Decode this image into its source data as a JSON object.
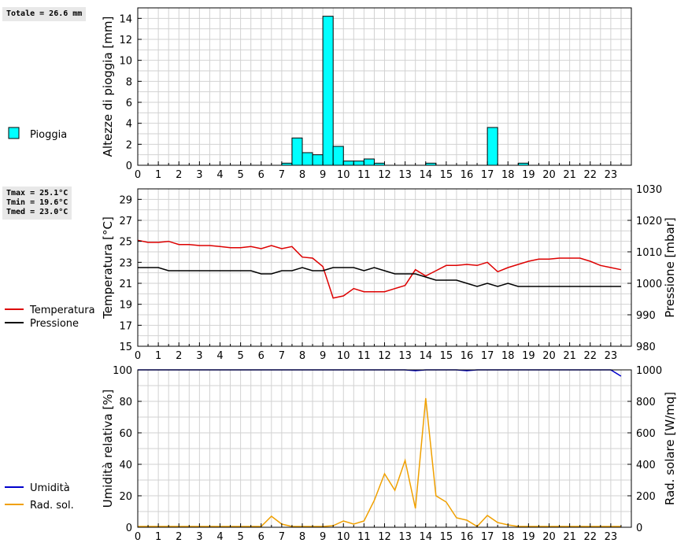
{
  "chart_data": [
    {
      "type": "bar",
      "name": "rain",
      "info": [
        "Totale = 26.6 mm"
      ],
      "ylabel": "Altezze di pioggia [mm]",
      "ylim": [
        0,
        15
      ],
      "yticks": [
        0,
        2,
        4,
        6,
        8,
        10,
        12,
        14
      ],
      "xlim": [
        0,
        24
      ],
      "xticks": [
        "0",
        "1",
        "2",
        "3",
        "4",
        "5",
        "6",
        "7",
        "8",
        "9",
        "10",
        "11",
        "12",
        "13",
        "14",
        "15",
        "16",
        "17",
        "18",
        "19",
        "20",
        "21",
        "22",
        "23"
      ],
      "bin_width": 0.5,
      "legend": [
        {
          "label": "Pioggia",
          "color": "#00ffff"
        }
      ],
      "bars": [
        {
          "x": 7.0,
          "value": 0.2
        },
        {
          "x": 7.5,
          "value": 2.6
        },
        {
          "x": 8.0,
          "value": 1.2
        },
        {
          "x": 8.5,
          "value": 1.0
        },
        {
          "x": 9.0,
          "value": 14.2
        },
        {
          "x": 9.5,
          "value": 1.8
        },
        {
          "x": 10.0,
          "value": 0.4
        },
        {
          "x": 10.5,
          "value": 0.4
        },
        {
          "x": 11.0,
          "value": 0.6
        },
        {
          "x": 11.5,
          "value": 0.2
        },
        {
          "x": 14.0,
          "value": 0.2
        },
        {
          "x": 17.0,
          "value": 3.6
        },
        {
          "x": 18.5,
          "value": 0.2
        }
      ]
    },
    {
      "type": "line",
      "name": "temp-press",
      "info": [
        "Tmax = 25.1°C",
        "Tmin = 19.6°C",
        "Tmed = 23.0°C"
      ],
      "ylabel": "Temperatura [°C]",
      "ylim": [
        15,
        30
      ],
      "yticks": [
        15,
        17,
        19,
        21,
        23,
        25,
        27,
        29
      ],
      "y2label": "Pressione [mbar]",
      "y2lim": [
        980,
        1030
      ],
      "y2ticks": [
        980,
        990,
        1000,
        1010,
        1020,
        1030
      ],
      "xlim": [
        0,
        24
      ],
      "xticks": [
        "0",
        "1",
        "2",
        "3",
        "4",
        "5",
        "6",
        "7",
        "8",
        "9",
        "10",
        "11",
        "12",
        "13",
        "14",
        "15",
        "16",
        "17",
        "18",
        "19",
        "20",
        "21",
        "22",
        "23"
      ],
      "legend": [
        {
          "label": "Temperatura",
          "color": "#dd0000"
        },
        {
          "label": "Pressione",
          "color": "#000000"
        }
      ],
      "series": [
        {
          "name": "Temperatura",
          "axis": "left",
          "color": "#dd0000",
          "x": [
            0,
            0.5,
            1,
            1.5,
            2,
            2.5,
            3,
            3.5,
            4,
            4.5,
            5,
            5.5,
            6,
            6.5,
            7,
            7.5,
            8,
            8.5,
            9,
            9.5,
            10,
            10.5,
            11,
            11.5,
            12,
            12.5,
            13,
            13.5,
            14,
            14.5,
            15,
            15.5,
            16,
            16.5,
            17,
            17.5,
            18,
            18.5,
            19,
            19.5,
            20,
            20.5,
            21,
            21.5,
            22,
            22.5,
            23,
            23.5
          ],
          "values": [
            25.1,
            24.9,
            24.9,
            25.0,
            24.7,
            24.7,
            24.6,
            24.6,
            24.5,
            24.4,
            24.4,
            24.5,
            24.3,
            24.6,
            24.3,
            24.5,
            23.5,
            23.4,
            22.6,
            19.6,
            19.8,
            20.5,
            20.2,
            20.2,
            20.2,
            20.5,
            20.8,
            22.3,
            21.7,
            22.2,
            22.7,
            22.7,
            22.8,
            22.7,
            23.0,
            22.1,
            22.5,
            22.8,
            23.1,
            23.3,
            23.3,
            23.4,
            23.4,
            23.4,
            23.1,
            22.7,
            22.5,
            22.3
          ]
        },
        {
          "name": "Pressione",
          "axis": "right",
          "color": "#000000",
          "x": [
            0,
            0.5,
            1,
            1.5,
            2,
            2.5,
            3,
            3.5,
            4,
            4.5,
            5,
            5.5,
            6,
            6.5,
            7,
            7.5,
            8,
            8.5,
            9,
            9.5,
            10,
            10.5,
            11,
            11.5,
            12,
            12.5,
            13,
            13.5,
            14,
            14.5,
            15,
            15.5,
            16,
            16.5,
            17,
            17.5,
            18,
            18.5,
            19,
            19.5,
            20,
            20.5,
            21,
            21.5,
            22,
            22.5,
            23,
            23.5
          ],
          "values": [
            1005,
            1005,
            1005,
            1004,
            1004,
            1004,
            1004,
            1004,
            1004,
            1004,
            1004,
            1004,
            1003,
            1003,
            1004,
            1004,
            1005,
            1004,
            1004,
            1005,
            1005,
            1005,
            1004,
            1005,
            1004,
            1003,
            1003,
            1003,
            1002,
            1001,
            1001,
            1001,
            1000,
            999,
            1000,
            999,
            1000,
            999,
            999,
            999,
            999,
            999,
            999,
            999,
            999,
            999,
            999,
            999
          ]
        }
      ]
    },
    {
      "type": "line",
      "name": "humidity-rad",
      "ylabel": "Umidità relativa [%]",
      "ylim": [
        0,
        100
      ],
      "yticks": [
        0,
        20,
        40,
        60,
        80,
        100
      ],
      "y2label": "Rad. solare [W/mq]",
      "y2lim": [
        0,
        1000
      ],
      "y2ticks": [
        0,
        200,
        400,
        600,
        800,
        1000
      ],
      "xlim": [
        0,
        24
      ],
      "xticks": [
        "0",
        "1",
        "2",
        "3",
        "4",
        "5",
        "6",
        "7",
        "8",
        "9",
        "10",
        "11",
        "12",
        "13",
        "14",
        "15",
        "16",
        "17",
        "18",
        "19",
        "20",
        "21",
        "22",
        "23"
      ],
      "legend": [
        {
          "label": "Umidità",
          "color": "#0000cc"
        },
        {
          "label": "Rad. sol.",
          "color": "#f0a000"
        }
      ],
      "series": [
        {
          "name": "Umidità",
          "axis": "left",
          "color": "#0000cc",
          "x": [
            0,
            0.5,
            1,
            1.5,
            2,
            2.5,
            3,
            3.5,
            4,
            4.5,
            5,
            5.5,
            6,
            6.5,
            7,
            7.5,
            8,
            8.5,
            9,
            9.5,
            10,
            10.5,
            11,
            11.5,
            12,
            12.5,
            13,
            13.5,
            14,
            14.5,
            15,
            15.5,
            16,
            16.5,
            17,
            17.5,
            18,
            18.5,
            19,
            19.5,
            20,
            20.5,
            21,
            21.5,
            22,
            22.5,
            23,
            23.5
          ],
          "values": [
            100,
            100,
            100,
            100,
            100,
            100,
            100,
            100,
            100,
            100,
            100,
            100,
            100,
            100,
            100,
            100,
            100,
            100,
            100,
            100,
            100,
            100,
            100,
            100,
            100,
            100,
            100,
            99.5,
            100,
            100,
            100,
            100,
            99.5,
            100,
            100,
            100,
            100,
            100,
            100,
            100,
            100,
            100,
            100,
            100,
            100,
            100,
            100,
            96
          ]
        },
        {
          "name": "Rad. sol.",
          "axis": "right",
          "color": "#f0a000",
          "x": [
            0,
            0.5,
            1,
            1.5,
            2,
            2.5,
            3,
            3.5,
            4,
            4.5,
            5,
            5.5,
            6,
            6.5,
            7,
            7.5,
            8,
            8.5,
            9,
            9.5,
            10,
            10.5,
            11,
            11.5,
            12,
            12.5,
            13,
            13.5,
            14,
            14.5,
            15,
            15.5,
            16,
            16.5,
            17,
            17.5,
            18,
            18.5,
            19,
            19.5,
            20,
            20.5,
            21,
            21.5,
            22,
            22.5,
            23,
            23.5
          ],
          "values": [
            5,
            5,
            5,
            5,
            5,
            5,
            5,
            5,
            5,
            5,
            5,
            5,
            5,
            70,
            20,
            5,
            5,
            5,
            5,
            10,
            40,
            20,
            40,
            170,
            340,
            235,
            425,
            120,
            820,
            200,
            160,
            60,
            45,
            5,
            75,
            30,
            15,
            5,
            5,
            5,
            5,
            5,
            5,
            5,
            5,
            5,
            5,
            5
          ]
        }
      ]
    }
  ]
}
